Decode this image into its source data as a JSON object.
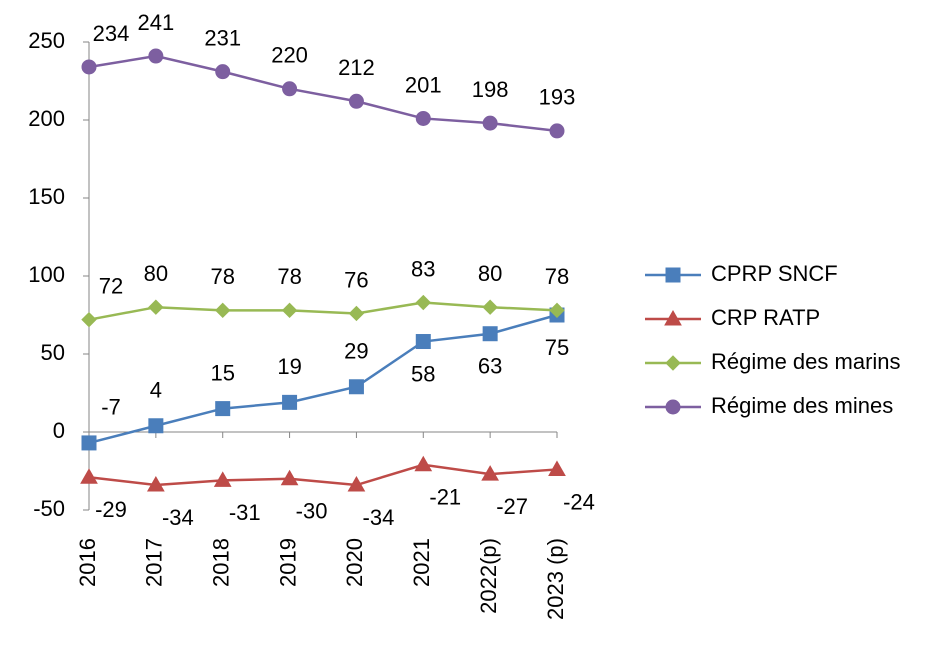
{
  "chart_data": {
    "type": "line",
    "categories": [
      "2016",
      "2017",
      "2018",
      "2019",
      "2020",
      "2021",
      "2022(p)",
      "2023 (p)"
    ],
    "series": [
      {
        "name": "CPRP SNCF",
        "color": "#4a7ebb",
        "marker": "square",
        "values": [
          -7,
          4,
          15,
          19,
          29,
          58,
          63,
          75
        ]
      },
      {
        "name": "CRP RATP",
        "color": "#be4b48",
        "marker": "triangle",
        "values": [
          -29,
          -34,
          -31,
          -30,
          -34,
          -21,
          -27,
          -24
        ]
      },
      {
        "name": "Régime des marins",
        "color": "#98b954",
        "marker": "diamond",
        "values": [
          72,
          80,
          78,
          78,
          76,
          83,
          80,
          78
        ]
      },
      {
        "name": "Régime des mines",
        "color": "#7d5fa0",
        "marker": "circle",
        "values": [
          234,
          241,
          231,
          220,
          212,
          201,
          198,
          193
        ]
      }
    ],
    "ylim": [
      -50,
      250
    ],
    "yticks": [
      -50,
      0,
      50,
      100,
      150,
      200,
      250
    ],
    "grid": false,
    "legend": "right"
  }
}
